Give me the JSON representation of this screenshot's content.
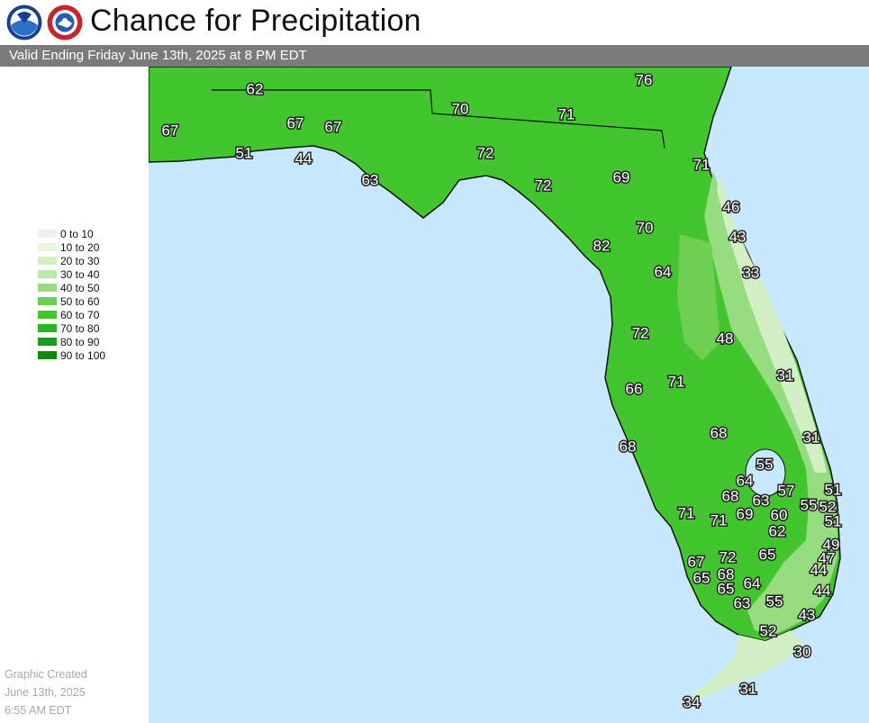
{
  "title": "Chance for Precipitation",
  "subtitle": "Valid Ending Friday June 13th, 2025 at 8 PM EDT",
  "logos": {
    "noaa": "NOAA",
    "nws": "NATIONAL WEATHER SERVICE"
  },
  "legend": [
    {
      "label": "0 to 10",
      "color": "#f4eef4"
    },
    {
      "label": "10 to 20",
      "color": "#e6f6e0"
    },
    {
      "label": "20 to 30",
      "color": "#d3f0c5"
    },
    {
      "label": "30 to 40",
      "color": "#bde8ab"
    },
    {
      "label": "40 to 50",
      "color": "#96dc80"
    },
    {
      "label": "50 to 60",
      "color": "#6fcf52"
    },
    {
      "label": "60 to 70",
      "color": "#42c52e"
    },
    {
      "label": "70 to 80",
      "color": "#2db32a"
    },
    {
      "label": "80 to 90",
      "color": "#1a9e1a"
    },
    {
      "label": "90 to 100",
      "color": "#0b8a0b"
    }
  ],
  "created": {
    "line1": "Graphic Created",
    "line2": "June 13th, 2025",
    "line3": "6:55 AM EDT"
  },
  "colors": {
    "water": "#c8e9fd",
    "land_main": "#42c52e",
    "land_lighter": "#6fcf52",
    "land_light": "#96dc80",
    "land_lightest": "#d3f0c5",
    "land_darker": "#2db32a"
  },
  "map_values": [
    "62",
    "76",
    "70",
    "71",
    "67",
    "67",
    "67",
    "51",
    "44",
    "63",
    "72",
    "71",
    "72",
    "69",
    "46",
    "70",
    "43",
    "82",
    "64",
    "33",
    "72",
    "48",
    "31",
    "71",
    "66",
    "68",
    "31",
    "68",
    "55",
    "64",
    "57",
    "51",
    "68",
    "63",
    "55",
    "52",
    "71",
    "71",
    "69",
    "60",
    "51",
    "62",
    "65",
    "49",
    "72",
    "47",
    "67",
    "68",
    "44",
    "65",
    "65",
    "64",
    "44",
    "63",
    "55",
    "43",
    "52",
    "30",
    "31",
    "34"
  ]
}
